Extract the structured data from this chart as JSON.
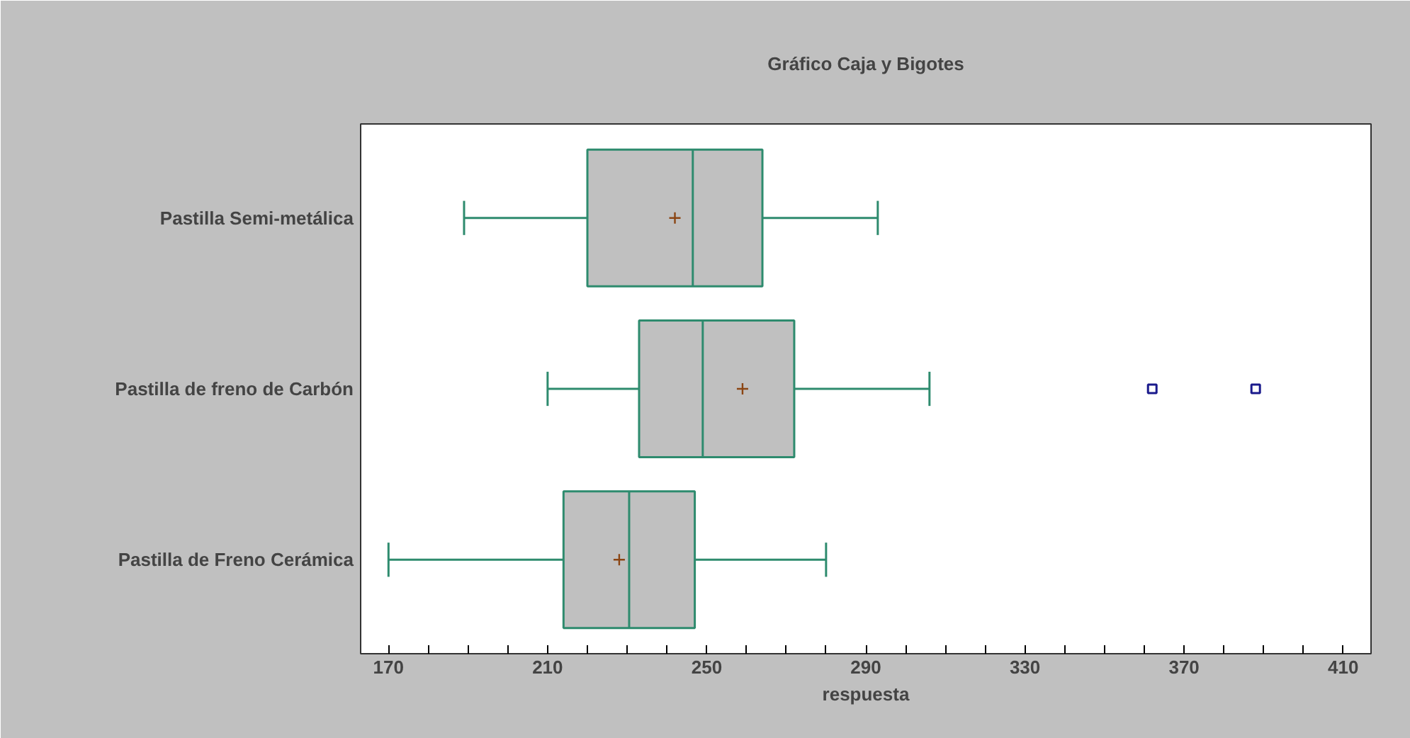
{
  "chart_data": {
    "type": "box",
    "orientation": "horizontal",
    "title": "Gráfico Caja y Bigotes",
    "xlabel": "respuesta",
    "categories": [
      "Pastilla Semi-metálica",
      "Pastilla de freno de Carbón",
      "Pastilla de Freno Cerámica"
    ],
    "series": [
      {
        "color": "#2e8b6e",
        "boxes": [
          {
            "low": 189,
            "q1": 220,
            "median": 246.5,
            "q3": 264,
            "high": 293,
            "mean": 242
          },
          {
            "low": 210,
            "q1": 233,
            "median": 249,
            "q3": 272,
            "high": 306,
            "mean": 259,
            "outliers": [
              362,
              388
            ]
          },
          {
            "low": 170,
            "q1": 214,
            "median": 230.5,
            "q3": 247,
            "high": 280,
            "mean": 228
          }
        ]
      }
    ],
    "xlim": [
      163,
      417
    ],
    "xticks": [
      170,
      {
        "value": 180,
        "label": null
      },
      {
        "value": 190,
        "label": null
      },
      {
        "value": 200,
        "label": null
      },
      210,
      {
        "value": 220,
        "label": null
      },
      {
        "value": 230,
        "label": null
      },
      {
        "value": 240,
        "label": null
      },
      250,
      {
        "value": 260,
        "label": null
      },
      {
        "value": 270,
        "label": null
      },
      {
        "value": 280,
        "label": null
      },
      290,
      {
        "value": 300,
        "label": null
      },
      {
        "value": 310,
        "label": null
      },
      {
        "value": 320,
        "label": null
      },
      330,
      {
        "value": 340,
        "label": null
      },
      {
        "value": 350,
        "label": null
      },
      {
        "value": 360,
        "label": null
      },
      370,
      {
        "value": 380,
        "label": null
      },
      {
        "value": 390,
        "label": null
      },
      {
        "value": 400,
        "label": null
      },
      410
    ],
    "grid": false
  }
}
